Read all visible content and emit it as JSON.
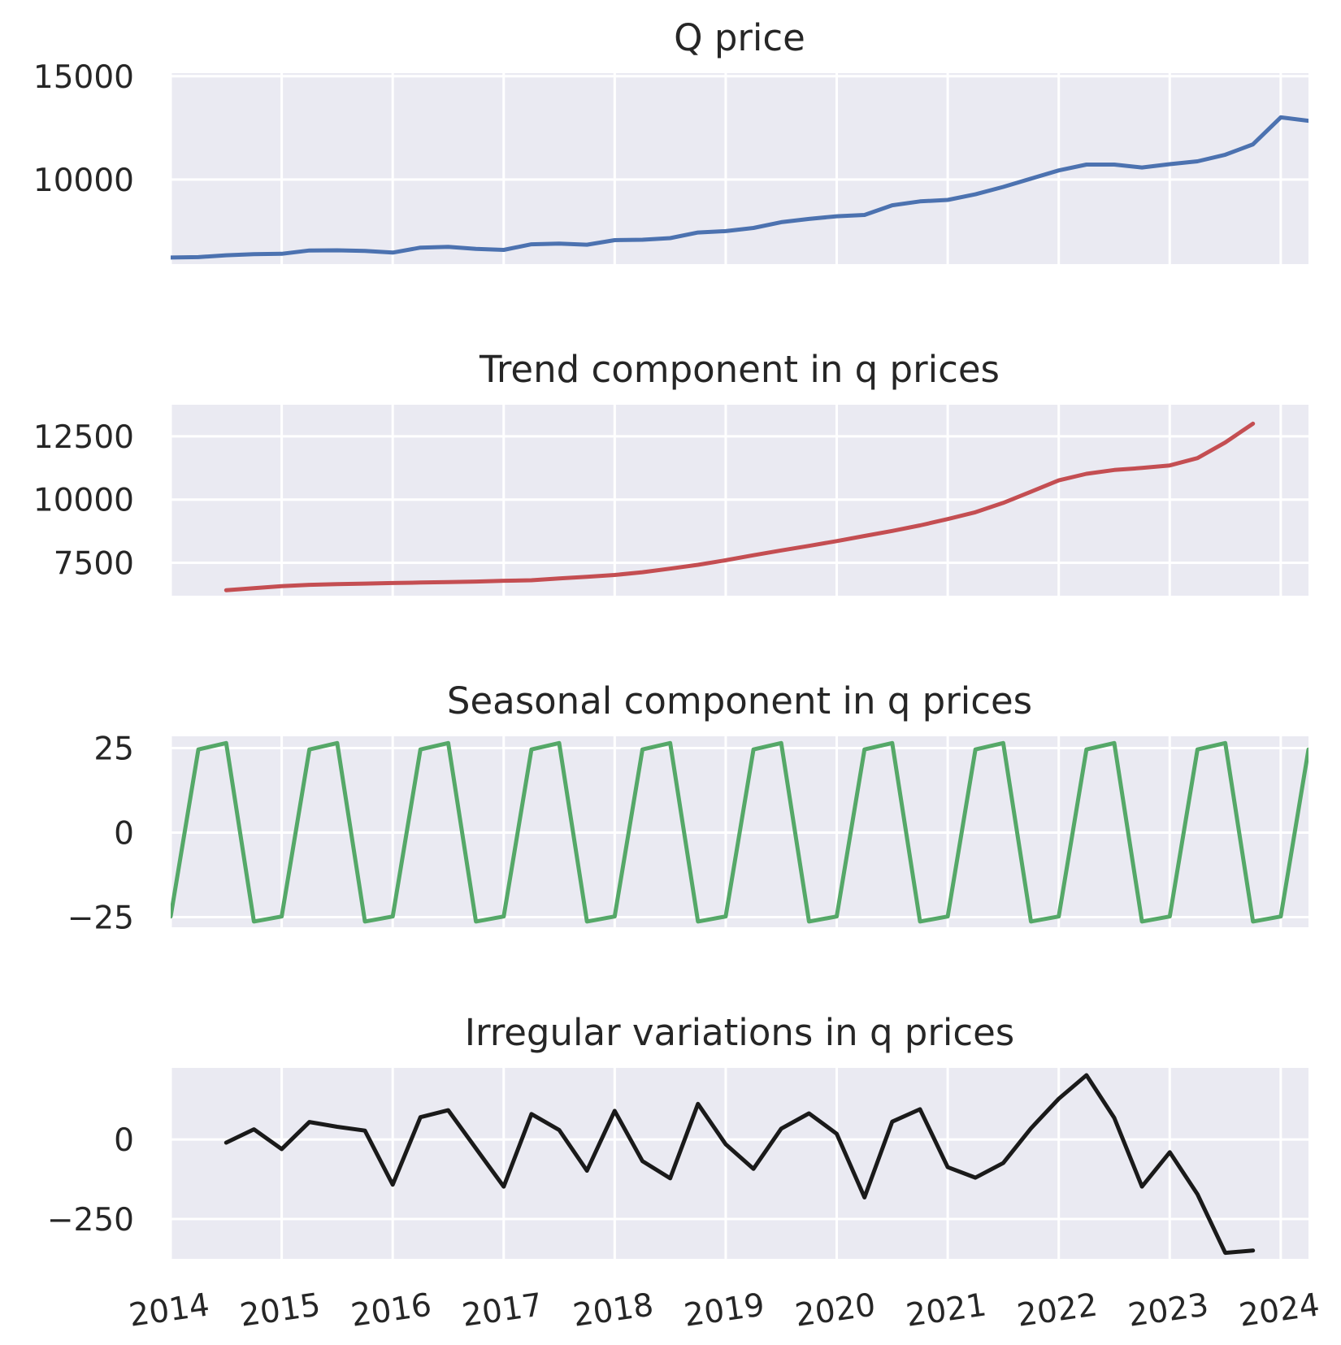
{
  "chart_data": [
    {
      "type": "line",
      "title": "Q price",
      "color": "#4c72b0",
      "yticks": [
        10000,
        15000
      ],
      "ytick_labels": [
        "10000",
        "15000"
      ],
      "ylim": [
        5900,
        15150
      ],
      "xlim": [
        2014.0,
        2024.25
      ],
      "x": [
        2014.0,
        2014.25,
        2014.5,
        2014.75,
        2015.0,
        2015.25,
        2015.5,
        2015.75,
        2016.0,
        2016.25,
        2016.5,
        2016.75,
        2017.0,
        2017.25,
        2017.5,
        2017.75,
        2018.0,
        2018.25,
        2018.5,
        2018.75,
        2019.0,
        2019.25,
        2019.5,
        2019.75,
        2020.0,
        2020.25,
        2020.5,
        2020.75,
        2021.0,
        2021.25,
        2021.5,
        2021.75,
        2022.0,
        2022.25,
        2022.5,
        2022.75,
        2023.0,
        2023.25,
        2023.5,
        2023.75,
        2024.0,
        2024.25
      ],
      "values": [
        6220,
        6240,
        6330,
        6380,
        6400,
        6560,
        6570,
        6540,
        6460,
        6700,
        6740,
        6640,
        6590,
        6860,
        6890,
        6840,
        7060,
        7080,
        7160,
        7430,
        7500,
        7650,
        7930,
        8090,
        8220,
        8280,
        8750,
        8940,
        9010,
        9280,
        9640,
        10040,
        10440,
        10720,
        10720,
        10580,
        10740,
        10880,
        11200,
        11700,
        13010,
        12840
      ]
    },
    {
      "type": "line",
      "title": "Trend component in q prices",
      "color": "#c44e52",
      "yticks": [
        7500,
        10000,
        12500
      ],
      "ytick_labels": [
        "7500",
        "10000",
        "12500"
      ],
      "ylim": [
        6200,
        13750
      ],
      "xlim": [
        2014.0,
        2024.25
      ],
      "x": [
        2014.5,
        2014.75,
        2015.0,
        2015.25,
        2015.5,
        2015.75,
        2016.0,
        2016.25,
        2016.5,
        2016.75,
        2017.0,
        2017.25,
        2017.5,
        2017.75,
        2018.0,
        2018.25,
        2018.5,
        2018.75,
        2019.0,
        2019.25,
        2019.5,
        2019.75,
        2020.0,
        2020.25,
        2020.5,
        2020.75,
        2021.0,
        2021.25,
        2021.5,
        2021.75,
        2022.0,
        2022.25,
        2022.5,
        2022.75,
        2023.0,
        2023.25,
        2023.5,
        2023.75
      ],
      "values": [
        6420,
        6500,
        6580,
        6630,
        6660,
        6680,
        6700,
        6720,
        6740,
        6760,
        6790,
        6810,
        6880,
        6950,
        7020,
        7130,
        7270,
        7420,
        7600,
        7800,
        7990,
        8170,
        8360,
        8560,
        8760,
        8980,
        9230,
        9500,
        9870,
        10310,
        10760,
        11020,
        11170,
        11250,
        11350,
        11640,
        12260,
        13000
      ]
    },
    {
      "type": "line",
      "title": "Seasonal component in q prices",
      "color": "#55a868",
      "yticks": [
        -25,
        0,
        25
      ],
      "ytick_labels": [
        "−25",
        "0",
        "25"
      ],
      "ylim": [
        -28,
        28.5
      ],
      "xlim": [
        2014.0,
        2024.25
      ],
      "x": [
        2014.0,
        2014.25,
        2014.5,
        2014.75,
        2015.0,
        2015.25,
        2015.5,
        2015.75,
        2016.0,
        2016.25,
        2016.5,
        2016.75,
        2017.0,
        2017.25,
        2017.5,
        2017.75,
        2018.0,
        2018.25,
        2018.5,
        2018.75,
        2019.0,
        2019.25,
        2019.5,
        2019.75,
        2020.0,
        2020.25,
        2020.5,
        2020.75,
        2021.0,
        2021.25,
        2021.5,
        2021.75,
        2022.0,
        2022.25,
        2022.5,
        2022.75,
        2023.0,
        2023.25,
        2023.5,
        2023.75,
        2024.0,
        2024.25
      ],
      "values": [
        -24.8,
        24.6,
        26.5,
        -26.3,
        -24.8,
        24.6,
        26.5,
        -26.3,
        -24.8,
        24.6,
        26.5,
        -26.3,
        -24.8,
        24.6,
        26.5,
        -26.3,
        -24.8,
        24.6,
        26.5,
        -26.3,
        -24.8,
        24.6,
        26.5,
        -26.3,
        -24.8,
        24.6,
        26.5,
        -26.3,
        -24.8,
        24.6,
        26.5,
        -26.3,
        -24.8,
        24.6,
        26.5,
        -26.3,
        -24.8,
        24.6,
        26.5,
        -26.3,
        -24.8,
        24.6
      ]
    },
    {
      "type": "line",
      "title": "Irregular variations in q prices",
      "color": "#1a1a1a",
      "yticks": [
        -250,
        0
      ],
      "ytick_labels": [
        "−250",
        "0"
      ],
      "ylim": [
        -375,
        225
      ],
      "xlim": [
        2014.0,
        2024.25
      ],
      "x": [
        2014.5,
        2014.75,
        2015.0,
        2015.25,
        2015.5,
        2015.75,
        2016.0,
        2016.25,
        2016.5,
        2016.75,
        2017.0,
        2017.25,
        2017.5,
        2017.75,
        2018.0,
        2018.25,
        2018.5,
        2018.75,
        2019.0,
        2019.25,
        2019.5,
        2019.75,
        2020.0,
        2020.25,
        2020.5,
        2020.75,
        2021.0,
        2021.25,
        2021.5,
        2021.75,
        2022.0,
        2022.25,
        2022.5,
        2022.75,
        2023.0,
        2023.25,
        2023.5,
        2023.75
      ],
      "values": [
        -10,
        32,
        -30,
        55,
        40,
        28,
        -142,
        70,
        92,
        -28,
        -148,
        80,
        30,
        -98,
        90,
        -68,
        -122,
        112,
        -15,
        -92,
        34,
        82,
        18,
        -182,
        56,
        95,
        -87,
        -120,
        -74,
        35,
        128,
        202,
        68,
        -148,
        -40,
        -172,
        -356,
        -349
      ]
    }
  ],
  "x_axis": {
    "ticks": [
      2014,
      2015,
      2016,
      2017,
      2018,
      2019,
      2020,
      2021,
      2022,
      2023,
      2024
    ],
    "tick_labels": [
      "2014",
      "2015",
      "2016",
      "2017",
      "2018",
      "2019",
      "2020",
      "2021",
      "2022",
      "2023",
      "2024"
    ]
  },
  "style": {
    "plot_background": "#eaeaf2",
    "grid_color": "#ffffff"
  }
}
